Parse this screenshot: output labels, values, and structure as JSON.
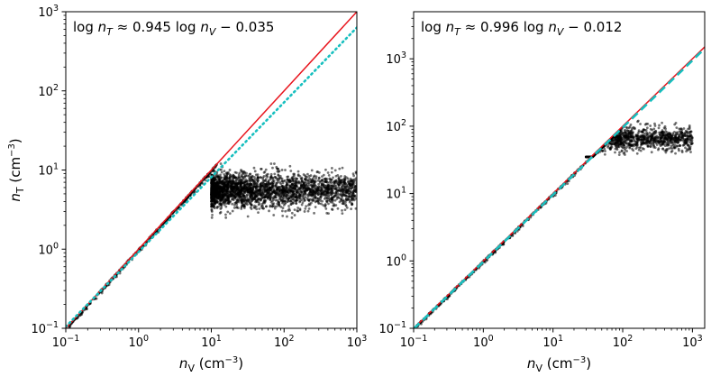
{
  "chart_data": [
    {
      "type": "scatter",
      "xscale": "log",
      "yscale": "log",
      "xlim": [
        0.1,
        1000
      ],
      "ylim": [
        0.1,
        1000
      ],
      "xlabel": "n_V (cm^-3)",
      "ylabel": "n_T (cm^-3)",
      "xticks": [
        0.1,
        1,
        10,
        100,
        1000
      ],
      "yticks": [
        0.1,
        1,
        10,
        100,
        1000
      ],
      "annotation": "log n_T ≈ 0.945 log n_V − 0.035",
      "fit": {
        "slope": 0.945,
        "intercept": -0.035
      },
      "scatter_summary": {
        "points_follow_identity_up_to_x": 12,
        "plateau_x_range": [
          10,
          1000
        ],
        "plateau_y_range": [
          2.5,
          12
        ],
        "plateau_y_median": 5.5
      },
      "series": [
        {
          "name": "",
          "kind": "scatter",
          "color": "#000000"
        },
        {
          "name": "",
          "kind": "line",
          "style": "solid",
          "color": "#e8141c"
        },
        {
          "name": "",
          "kind": "line",
          "style": "dotted",
          "color": "#17bfbf"
        }
      ],
      "grid": false,
      "legend": "none"
    },
    {
      "type": "scatter",
      "xscale": "log",
      "yscale": "log",
      "xlim": [
        0.1,
        1500
      ],
      "ylim": [
        0.1,
        5000
      ],
      "xlabel": "n_V (cm^-3)",
      "ylabel": "",
      "xticks": [
        0.1,
        1,
        10,
        100,
        1000
      ],
      "yticks": [
        0.1,
        1,
        10,
        100,
        1000
      ],
      "annotation": "log n_T ≈ 0.996 log n_V − 0.012",
      "fit": {
        "slope": 0.996,
        "intercept": -0.012
      },
      "scatter_summary": {
        "points_follow_identity_up_to_x": 30,
        "plateau_x_range": [
          30,
          1000
        ],
        "plateau_y_range": [
          35,
          120
        ],
        "plateau_y_median": 65
      },
      "series": [
        {
          "name": "",
          "kind": "scatter",
          "color": "#000000"
        },
        {
          "name": "",
          "kind": "line",
          "style": "solid",
          "color": "#e8141c"
        },
        {
          "name": "",
          "kind": "line",
          "style": "dashed",
          "color": "#17bfbf"
        }
      ],
      "grid": false,
      "legend": "none"
    }
  ]
}
